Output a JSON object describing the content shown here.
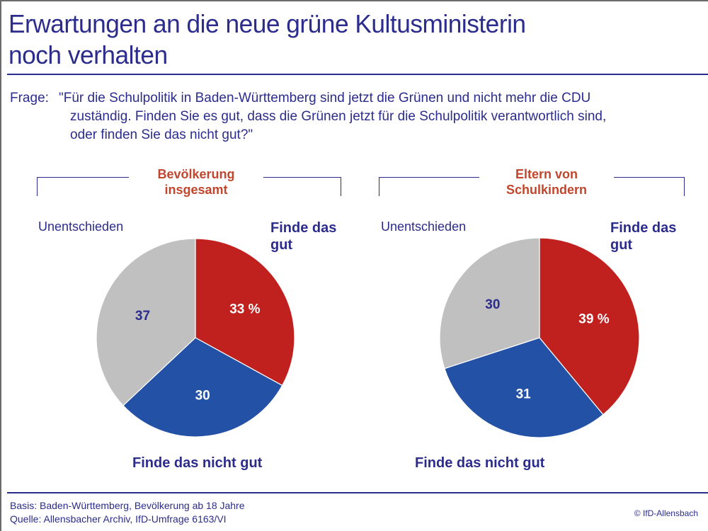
{
  "header": {
    "title_line1": "Erwartungen an die neue grüne Kultusministerin",
    "title_line2": "noch verhalten"
  },
  "question": {
    "label": "Frage:",
    "line1": "\"Für die Schulpolitik in Baden-Württemberg sind jetzt die Grünen und nicht mehr die CDU",
    "line2": "zuständig. Finden Sie es gut, dass die Grünen jetzt für die Schulpolitik verantwortlich sind,",
    "line3": "oder finden Sie das nicht gut?\""
  },
  "colors": {
    "good": "#c0211f",
    "not_good": "#2251a5",
    "undecided": "#c0c0c0",
    "text": "#2b2c8c",
    "group_title": "#c2462e"
  },
  "chart_data": [
    {
      "type": "pie",
      "title_line1": "Bevölkerung",
      "title_line2": "insgesamt",
      "unit": "%",
      "slices": [
        {
          "label_line1": "Finde das",
          "label_line2": "gut",
          "value": 33,
          "value_label": "33 %",
          "color": "#c0211f"
        },
        {
          "label_line1": "Finde das nicht gut",
          "label_line2": "",
          "value": 30,
          "value_label": "30",
          "color": "#2251a5"
        },
        {
          "label_line1": "Unentschieden",
          "label_line2": "",
          "value": 37,
          "value_label": "37",
          "color": "#c0c0c0"
        }
      ]
    },
    {
      "type": "pie",
      "title_line1": "Eltern von",
      "title_line2": "Schulkindern",
      "unit": "%",
      "slices": [
        {
          "label_line1": "Finde das",
          "label_line2": "gut",
          "value": 39,
          "value_label": "39 %",
          "color": "#c0211f"
        },
        {
          "label_line1": "Finde das nicht gut",
          "label_line2": "",
          "value": 31,
          "value_label": "31",
          "color": "#2251a5"
        },
        {
          "label_line1": "Unentschieden",
          "label_line2": "",
          "value": 30,
          "value_label": "30",
          "color": "#c0c0c0"
        }
      ]
    }
  ],
  "footer": {
    "basis": "Basis: Baden-Württemberg, Bevölkerung ab 18 Jahre",
    "source": "Quelle: Allensbacher Archiv, IfD-Umfrage 6163/VI",
    "copyright": "© IfD-Allensbach"
  }
}
